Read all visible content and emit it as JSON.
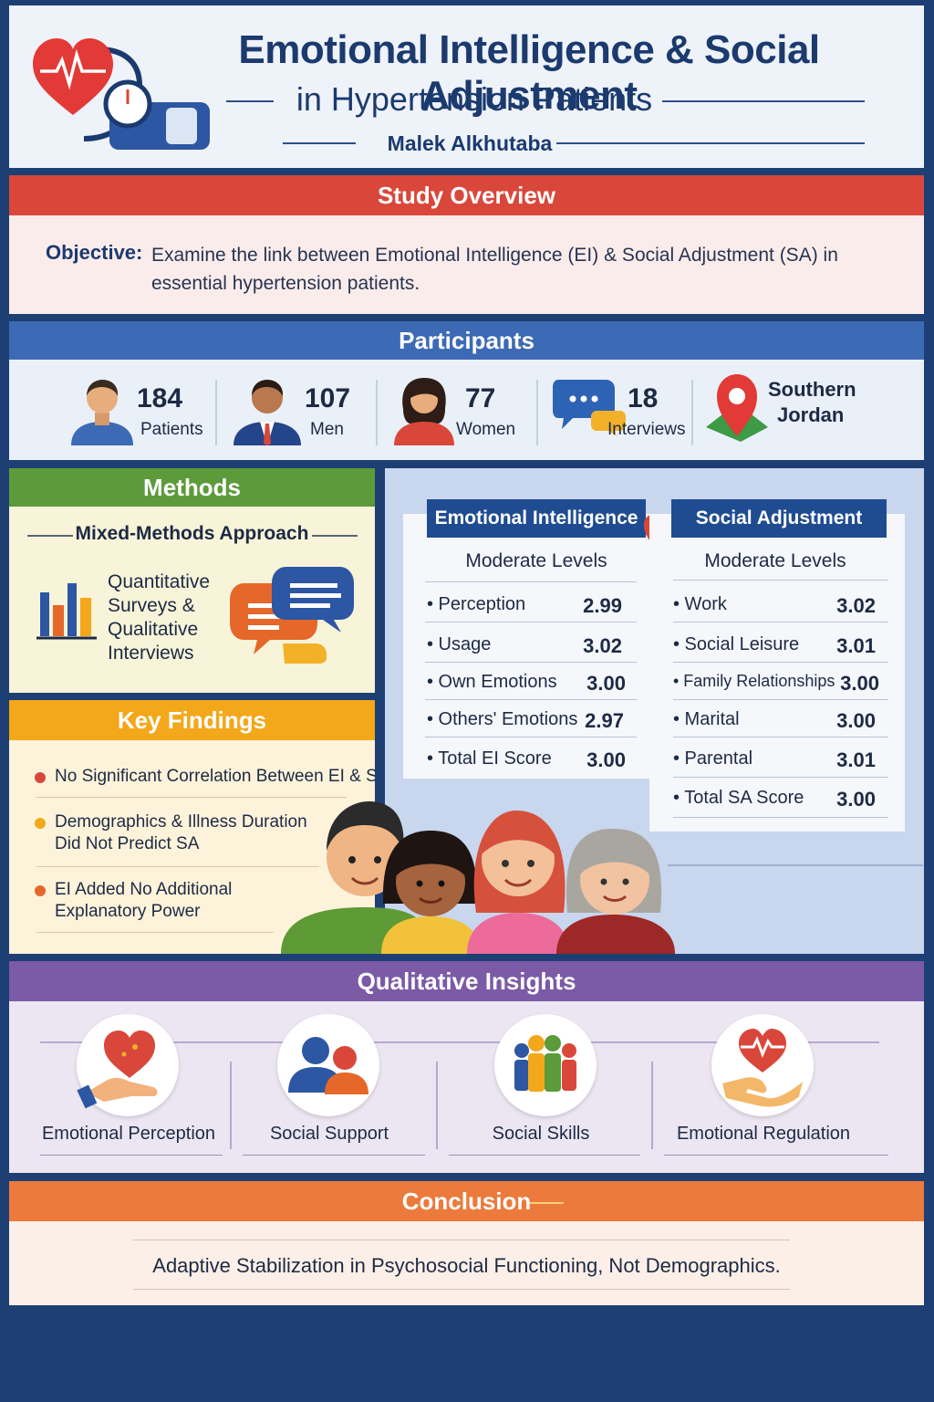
{
  "header": {
    "title_line1": "Emotional Intelligence & Social Adjustment",
    "title_line2": "in Hypertension Patients",
    "author": "Malek Alkhutaba"
  },
  "overview": {
    "heading": "Study Overview",
    "objective_label": "Objective:",
    "objective_text": "Examine the link between Emotional Intelligence (EI) & Social Adjustment (SA) in essential hypertension patients."
  },
  "participants": {
    "heading": "Participants",
    "stats": [
      {
        "value": "184",
        "label": "Patients"
      },
      {
        "value": "107",
        "label": "Men"
      },
      {
        "value": "77",
        "label": "Women"
      },
      {
        "value": "18",
        "label": "Interviews"
      }
    ],
    "location_line1": "Southern",
    "location_line2": "Jordan"
  },
  "methods": {
    "heading": "Methods",
    "approach": "Mixed-Methods Approach",
    "text": "Quantitative Surveys & Qualitative Interviews"
  },
  "findings": {
    "heading": "Key Findings",
    "items": [
      {
        "text": "No Significant Correlation Between EI & SA",
        "color": "#d9473b"
      },
      {
        "text": "Demographics & Illness Duration Did Not Predict SA",
        "color": "#f3a71b"
      },
      {
        "text": "EI Added No Additional Explanatory Power",
        "color": "#e5672a"
      }
    ]
  },
  "measures": {
    "ei": {
      "title": "Emotional Intelligence",
      "level": "Moderate Levels",
      "rows": [
        {
          "label": "Perception",
          "value": "2.99"
        },
        {
          "label": "Usage",
          "value": "3.02"
        },
        {
          "label": "Own Emotions",
          "value": "3.00"
        },
        {
          "label": "Others' Emotions",
          "value": "2.97"
        },
        {
          "label": "Total EI Score",
          "value": "3.00"
        }
      ]
    },
    "sa": {
      "title": "Social Adjustment",
      "level": "Moderate Levels",
      "rows": [
        {
          "label": "Work",
          "value": "3.02"
        },
        {
          "label": "Social Leisure",
          "value": "3.01"
        },
        {
          "label": "Family Relationships",
          "value": "3.00"
        },
        {
          "label": "Marital",
          "value": "3.00"
        },
        {
          "label": "Parental",
          "value": "3.01"
        },
        {
          "label": "Total SA Score",
          "value": "3.00"
        }
      ]
    }
  },
  "qualitative": {
    "heading": "Qualitative Insights",
    "items": [
      {
        "label": "Emotional Perception",
        "icon": "heart-hand-icon"
      },
      {
        "label": "Social Support",
        "icon": "people-icon"
      },
      {
        "label": "Social Skills",
        "icon": "group-icon"
      },
      {
        "label": "Emotional Regulation",
        "icon": "heartbeat-hand-icon"
      }
    ]
  },
  "conclusion": {
    "heading": "Conclusion",
    "text": "Adaptive Stabilization in Psychosocial Functioning, Not Demographics."
  },
  "colors": {
    "overview": "#d9473b",
    "participants": "#3d6ab5",
    "methods": "#5c9a3a",
    "findings": "#f3a71b",
    "qualitative": "#7b5aa6",
    "conclusion": "#ec7a3c",
    "navy": "#1e3f73"
  }
}
